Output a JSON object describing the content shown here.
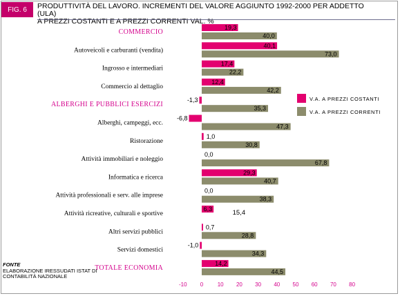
{
  "figure_tag": "FIG. 6",
  "title_line1": "PRODUTTIVITÀ DEL LAVORO. INCREMENTI DEL VALORE AGGIUNTO 1992-2000 PER ADDETTO (ULA)",
  "title_line2": "A PREZZI COSTANTI E A PREZZI CORRENTI     VAL. %",
  "source": {
    "head": "FONTE",
    "text": "ELABORAZIONE IRESSUDATI ISTAT DI CONTABILITÀ NAZIONALE"
  },
  "colors": {
    "constant": "#e3006f",
    "current": "#8c8c6c",
    "highlight_label": "#d4008c",
    "text": "#000000",
    "axis_label": "#d4008c"
  },
  "chart_data": {
    "type": "bar",
    "orientation": "horizontal",
    "xlim": [
      -10,
      80
    ],
    "xticks": [
      -10,
      0,
      10,
      20,
      30,
      40,
      50,
      60,
      70,
      80
    ],
    "xtick_labels": [
      "-10",
      "0",
      "10",
      "20",
      "30",
      "40",
      "50",
      "60",
      "70",
      "80"
    ],
    "legend_position": "right",
    "categories": [
      "COMMERCIO",
      "Autoveicoli e carburanti (vendita)",
      "Ingrosso e intermediari",
      "Commercio al dettaglio",
      "ALBERGHI E PUBBLICI ESERCIZI",
      "Alberghi, campeggi, ecc.",
      "Ristorazione",
      "Attività immobiliari e noleggio",
      "Informatica e ricerca",
      "Attività professionali e serv. alle imprese",
      "Attività ricreative, culturali e sportive",
      "Altri servizi pubblici",
      "Servizi domestici",
      "TOTALE ECONOMIA"
    ],
    "highlighted": [
      true,
      false,
      false,
      false,
      true,
      false,
      false,
      false,
      false,
      false,
      false,
      false,
      false,
      true
    ],
    "series": [
      {
        "name": "V.A. A PREZZI COSTANTI",
        "values": [
          19.3,
          40.1,
          17.4,
          12.4,
          -1.3,
          -6.8,
          1.0,
          0.0,
          29.3,
          0.0,
          6.3,
          0.7,
          -1.0,
          14.2
        ],
        "labels": [
          "19,3",
          "40,1",
          "17,4",
          "12,4",
          "-1,3",
          "-6,8",
          "1,0",
          "0,0",
          "29,3",
          "0,0",
          "6,3",
          "0,7",
          "-1,0",
          "14,2"
        ]
      },
      {
        "name": "V.A. A PREZZI CORRENTI",
        "values": [
          40.0,
          73.0,
          22.2,
          42.2,
          35.3,
          47.3,
          30.8,
          67.8,
          40.7,
          38.3,
          15.4,
          28.8,
          34.3,
          44.5
        ],
        "labels": [
          "40,0",
          "73,0",
          "22,2",
          "42,2",
          "35,3",
          "47,3",
          "30,8",
          "67,8",
          "40,7",
          "38,3",
          "15,4",
          "28,8",
          "34,3",
          "44,5"
        ],
        "drawn": [
          true,
          true,
          true,
          true,
          true,
          true,
          true,
          true,
          true,
          true,
          false,
          true,
          true,
          true
        ]
      }
    ]
  }
}
